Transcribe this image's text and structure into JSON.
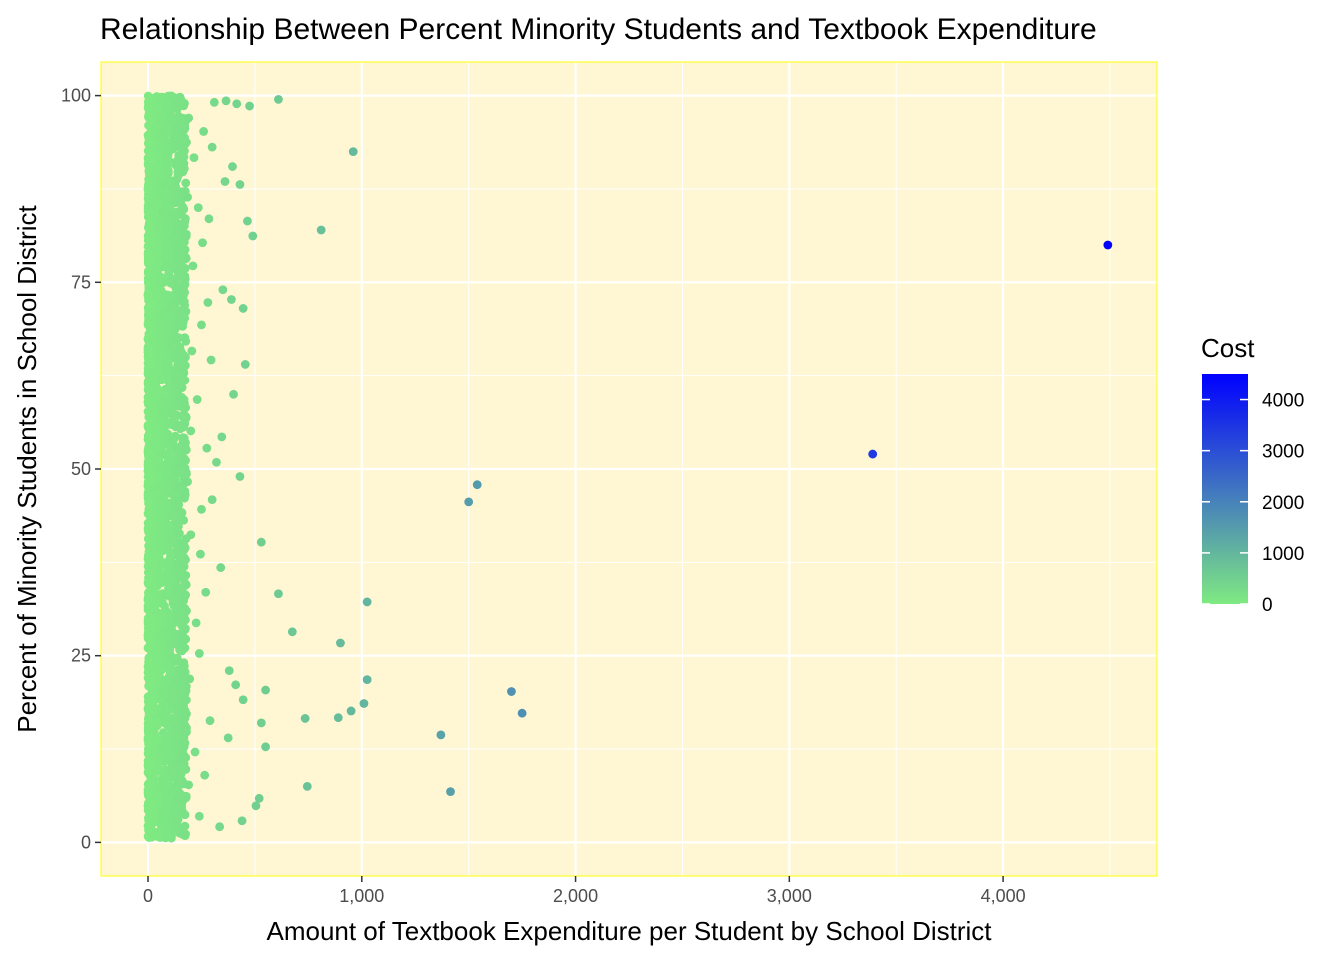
{
  "chart_data": {
    "type": "scatter",
    "title": "Relationship Between Percent Minority Students and Textbook Expenditure",
    "xlabel": "Amount of Textbook Expenditure per Student by School District",
    "ylabel": "Percent of Minority Students in School District",
    "xlim": [
      -220,
      4720
    ],
    "ylim": [
      -4.5,
      104.5
    ],
    "x_ticks": [
      0,
      1000,
      2000,
      3000,
      4000
    ],
    "x_tick_labels": [
      "0",
      "1,000",
      "2,000",
      "3,000",
      "4,000"
    ],
    "x_minor_ticks": [
      500,
      1500,
      2500,
      3500,
      4500
    ],
    "y_ticks": [
      0,
      25,
      50,
      75,
      100
    ],
    "y_tick_labels": [
      "0",
      "25",
      "50",
      "75",
      "100"
    ],
    "y_minor_ticks": [
      12.5,
      37.5,
      62.5,
      87.5
    ],
    "grid": true,
    "panel_background": "#FFF6D3",
    "panel_border": "#FFFF00",
    "grid_color": "#FFFFFF",
    "legend": {
      "title": "Cost",
      "position": "right",
      "type": "colorbar",
      "low_color": "#7FEA82",
      "high_color": "#0000FF",
      "range": [
        0,
        4500
      ],
      "breaks": [
        0,
        1000,
        2000,
        3000,
        4000
      ],
      "break_labels": [
        "0",
        "1000",
        "2000",
        "3000",
        "4000"
      ]
    },
    "dense_cluster": {
      "x_range": [
        0,
        180
      ],
      "y_range": [
        0.5,
        100
      ],
      "color": "#7FEA82",
      "n": 2600
    },
    "points": [
      {
        "x": 4490,
        "y": 80.0
      },
      {
        "x": 3390,
        "y": 52.0
      },
      {
        "x": 1750,
        "y": 17.3
      },
      {
        "x": 1700,
        "y": 20.2
      },
      {
        "x": 1540,
        "y": 47.9
      },
      {
        "x": 1500,
        "y": 45.6
      },
      {
        "x": 1415,
        "y": 6.8
      },
      {
        "x": 1370,
        "y": 14.4
      },
      {
        "x": 1025,
        "y": 32.2
      },
      {
        "x": 1025,
        "y": 21.8
      },
      {
        "x": 1010,
        "y": 18.6
      },
      {
        "x": 960,
        "y": 92.5
      },
      {
        "x": 950,
        "y": 17.6
      },
      {
        "x": 900,
        "y": 26.7
      },
      {
        "x": 890,
        "y": 16.7
      },
      {
        "x": 810,
        "y": 82.0
      },
      {
        "x": 735,
        "y": 16.6
      },
      {
        "x": 745,
        "y": 7.5
      },
      {
        "x": 675,
        "y": 28.2
      },
      {
        "x": 610,
        "y": 99.5
      },
      {
        "x": 610,
        "y": 33.3
      },
      {
        "x": 550,
        "y": 20.4
      },
      {
        "x": 550,
        "y": 12.8
      },
      {
        "x": 530,
        "y": 40.2
      },
      {
        "x": 530,
        "y": 16.0
      },
      {
        "x": 520,
        "y": 5.9
      },
      {
        "x": 505,
        "y": 4.9
      },
      {
        "x": 490,
        "y": 81.2
      },
      {
        "x": 475,
        "y": 98.6
      },
      {
        "x": 465,
        "y": 83.2
      },
      {
        "x": 455,
        "y": 64.0
      },
      {
        "x": 445,
        "y": 71.5
      },
      {
        "x": 445,
        "y": 19.1
      },
      {
        "x": 440,
        "y": 2.9
      },
      {
        "x": 430,
        "y": 88.1
      },
      {
        "x": 430,
        "y": 49.0
      },
      {
        "x": 415,
        "y": 98.9
      },
      {
        "x": 410,
        "y": 21.1
      },
      {
        "x": 400,
        "y": 60.0
      },
      {
        "x": 395,
        "y": 90.5
      },
      {
        "x": 390,
        "y": 72.7
      },
      {
        "x": 380,
        "y": 23.0
      },
      {
        "x": 375,
        "y": 14.0
      },
      {
        "x": 365,
        "y": 99.3
      },
      {
        "x": 360,
        "y": 88.5
      },
      {
        "x": 350,
        "y": 74.0
      },
      {
        "x": 345,
        "y": 54.3
      },
      {
        "x": 340,
        "y": 36.8
      },
      {
        "x": 335,
        "y": 2.1
      },
      {
        "x": 320,
        "y": 50.9
      },
      {
        "x": 310,
        "y": 99.1
      },
      {
        "x": 300,
        "y": 93.1
      },
      {
        "x": 300,
        "y": 45.9
      },
      {
        "x": 295,
        "y": 64.6
      },
      {
        "x": 290,
        "y": 16.3
      },
      {
        "x": 285,
        "y": 83.5
      },
      {
        "x": 280,
        "y": 72.3
      },
      {
        "x": 275,
        "y": 52.8
      },
      {
        "x": 270,
        "y": 33.5
      },
      {
        "x": 265,
        "y": 9.0
      },
      {
        "x": 260,
        "y": 95.2
      },
      {
        "x": 255,
        "y": 80.3
      },
      {
        "x": 250,
        "y": 69.3
      },
      {
        "x": 250,
        "y": 44.6
      },
      {
        "x": 245,
        "y": 38.6
      },
      {
        "x": 240,
        "y": 25.3
      },
      {
        "x": 240,
        "y": 3.5
      },
      {
        "x": 235,
        "y": 85.0
      },
      {
        "x": 230,
        "y": 59.3
      },
      {
        "x": 225,
        "y": 29.4
      },
      {
        "x": 220,
        "y": 12.1
      },
      {
        "x": 215,
        "y": 91.7
      },
      {
        "x": 210,
        "y": 77.2
      },
      {
        "x": 205,
        "y": 65.8
      },
      {
        "x": 200,
        "y": 55.1
      },
      {
        "x": 200,
        "y": 41.2
      },
      {
        "x": 195,
        "y": 21.9
      },
      {
        "x": 190,
        "y": 7.7
      },
      {
        "x": 190,
        "y": 97.0
      },
      {
        "x": 185,
        "y": 86.4
      },
      {
        "x": 185,
        "y": 48.3
      },
      {
        "x": 180,
        "y": 31.0
      },
      {
        "x": 180,
        "y": 14.8
      }
    ]
  }
}
